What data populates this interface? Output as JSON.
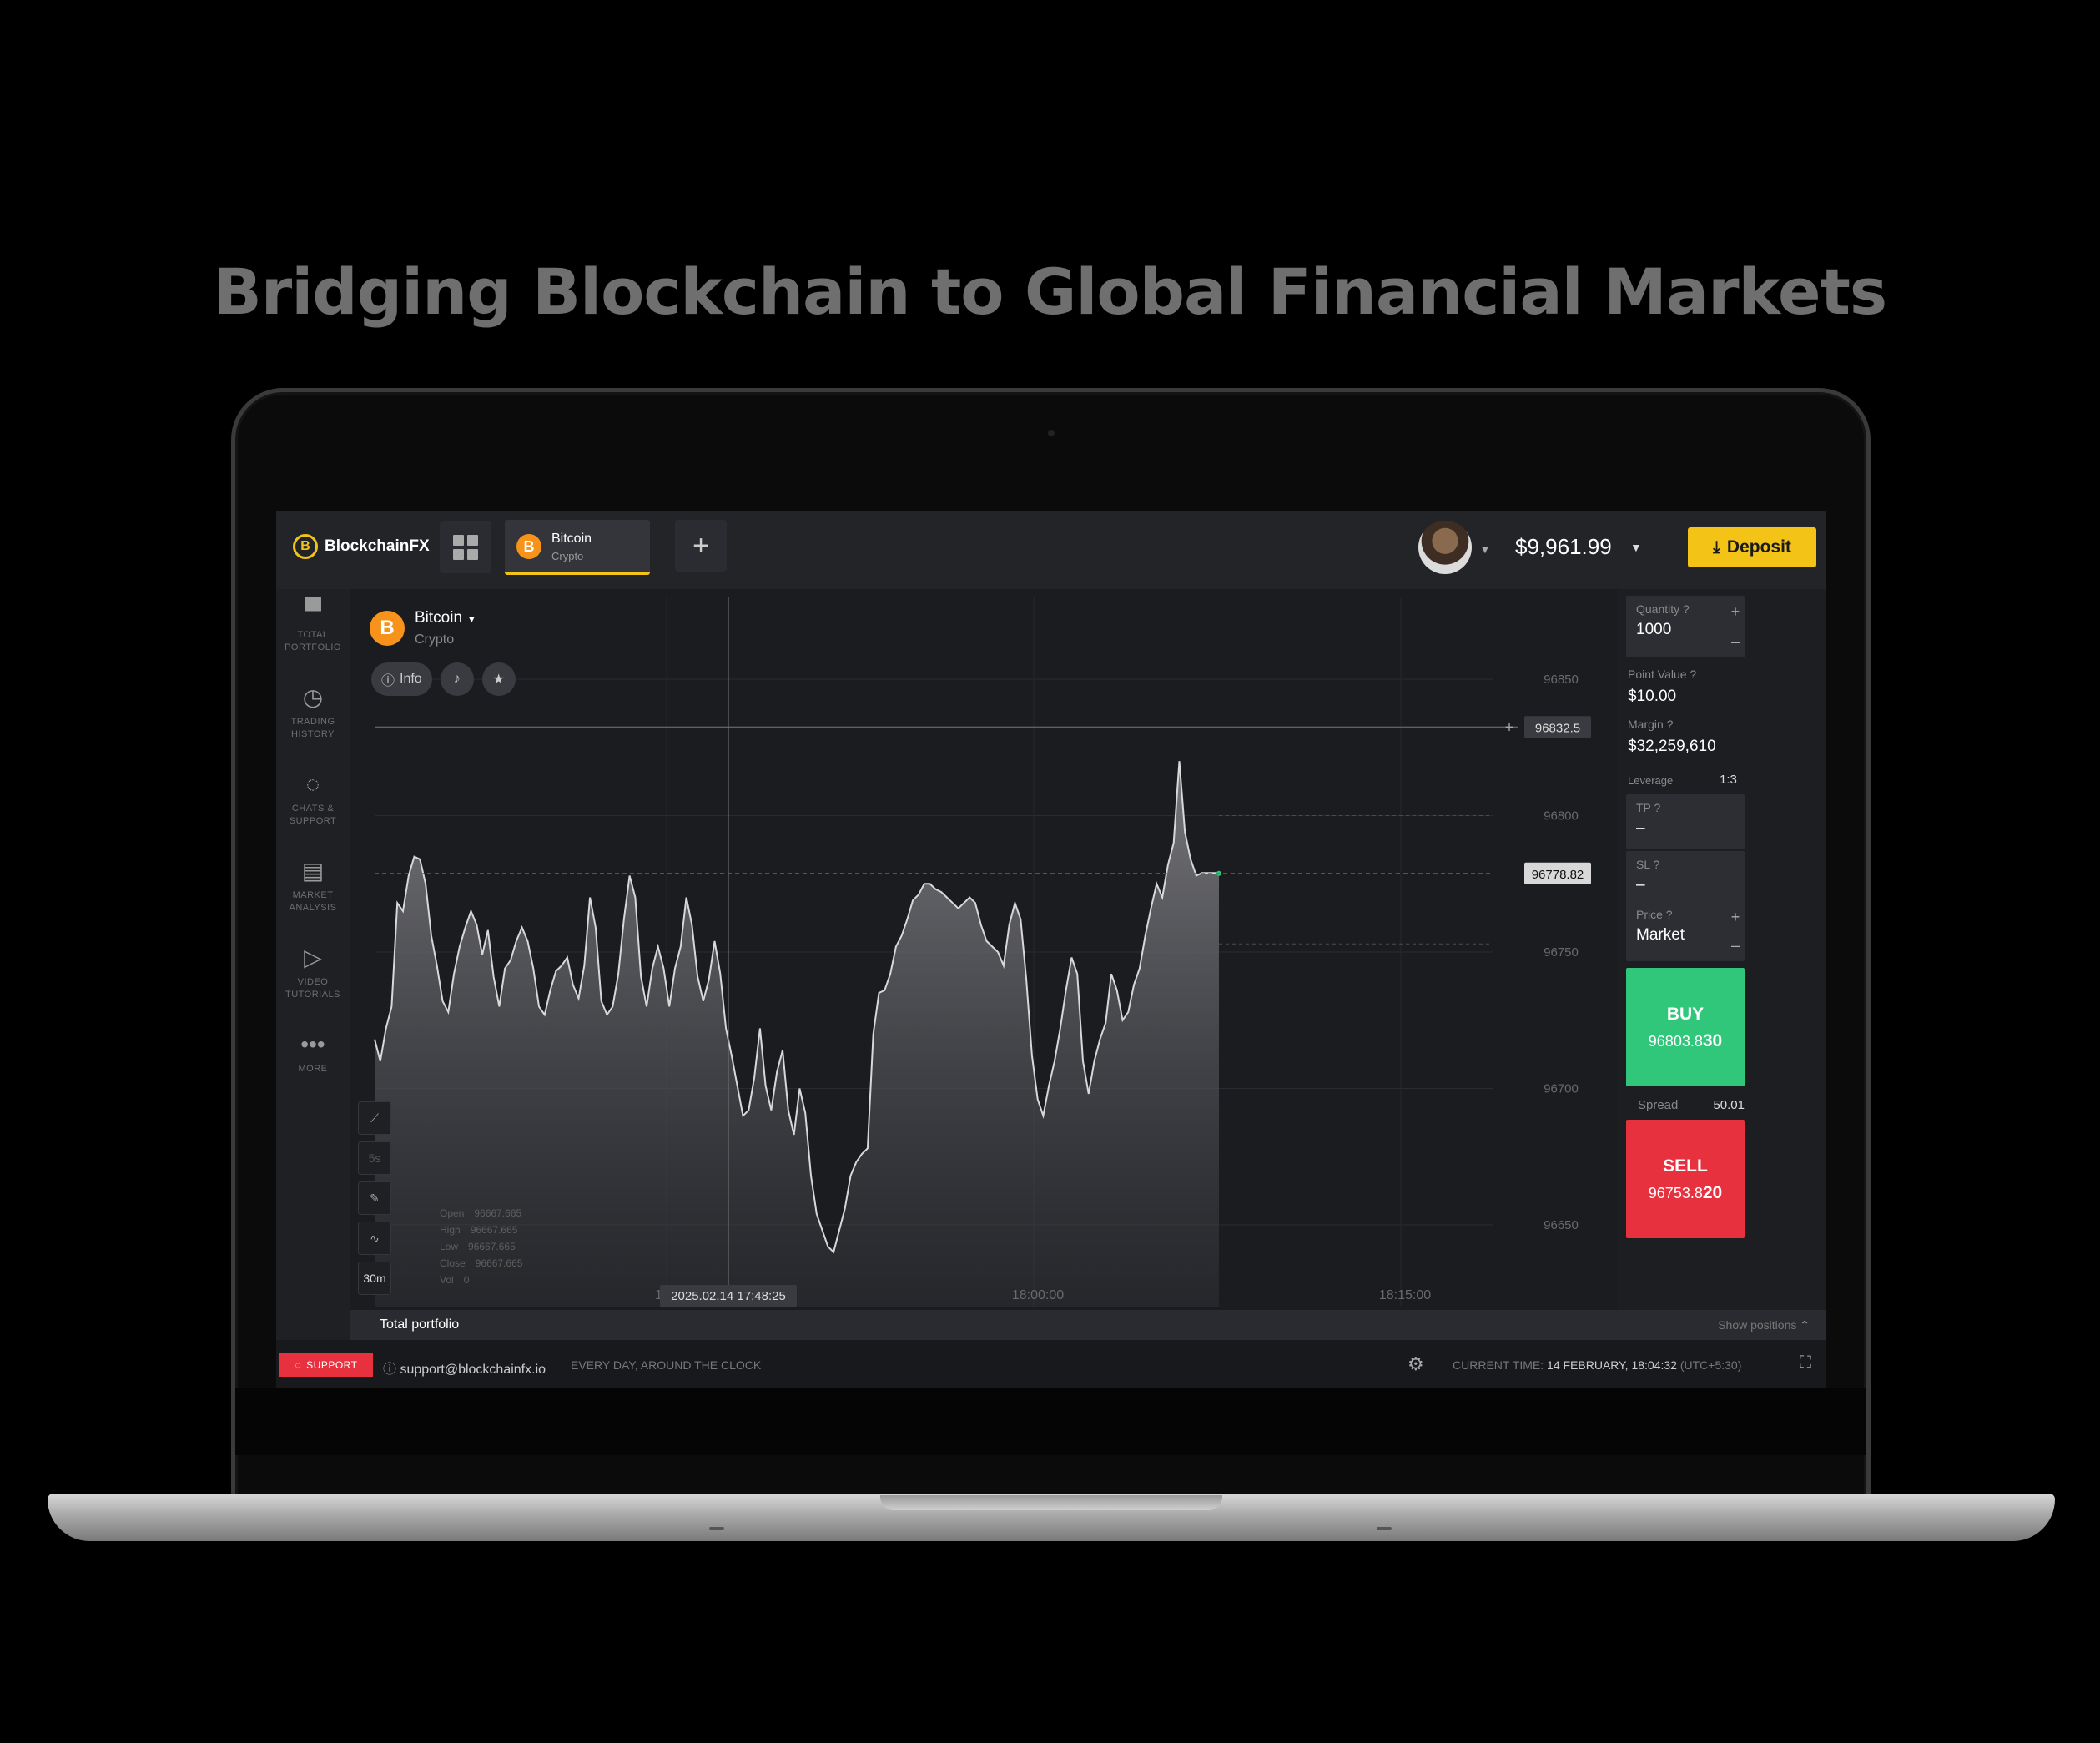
{
  "headline": "Bridging Blockchain to Global Financial Markets",
  "app": {
    "logo_text": "BlockchainFX",
    "logo_letter": "B",
    "tab": {
      "name": "Bitcoin",
      "category": "Crypto",
      "coin_letter": "B"
    },
    "add_tab": "+",
    "balance": "$9,961.99",
    "deposit_label": "Deposit"
  },
  "sidebar": [
    {
      "icon": "briefcase-icon",
      "label_1": "TOTAL",
      "label_2": "PORTFOLIO"
    },
    {
      "icon": "history-icon",
      "label_1": "TRADING",
      "label_2": "HISTORY"
    },
    {
      "icon": "chat-icon",
      "label_1": "CHATS &",
      "label_2": "SUPPORT"
    },
    {
      "icon": "analysis-icon",
      "label_1": "MARKET",
      "label_2": "ANALYSIS"
    },
    {
      "icon": "play-icon",
      "label_1": "VIDEO",
      "label_2": "TUTORIALS"
    },
    {
      "icon": "more-icon",
      "label_1": "MORE",
      "label_2": ""
    }
  ],
  "chart_header": {
    "name": "Bitcoin",
    "category": "Crypto",
    "info_label": "Info"
  },
  "tools": [
    "5s",
    "30m"
  ],
  "ohlc": {
    "open_label": "Open",
    "open": "96667.665",
    "high_label": "High",
    "high": "96667.665",
    "low_label": "Low",
    "low": "96667.665",
    "close_label": "Close",
    "close": "96667.665",
    "vol_label": "Vol",
    "vol": "0"
  },
  "chart_data": {
    "type": "area",
    "ylim": [
      96620,
      96880
    ],
    "y_ticks": [
      96650,
      96700,
      96750,
      96800,
      96850
    ],
    "y_tick_labels": [
      "96650",
      "96700",
      "96750",
      "96800",
      "96850"
    ],
    "x_tick_labels": [
      "17:45",
      "18:00:00",
      "18:15:00"
    ],
    "crosshair_time": "2025.02.14 17:48:25",
    "crosshair_price": "96832.5",
    "current_price": "96778.82",
    "current_price_value": 96778.82,
    "crosshair_price_value": 96832.5,
    "series": [
      {
        "values": [
          96718,
          96710,
          96722,
          96730,
          96768,
          96765,
          96778,
          96785,
          96784,
          96775,
          96756,
          96745,
          96732,
          96728,
          96742,
          96752,
          96759,
          96765,
          96760,
          96749,
          96758,
          96741,
          96730,
          96744,
          96747,
          96754,
          96759,
          96754,
          96744,
          96730,
          96727,
          96736,
          96743,
          96745,
          96748,
          96738,
          96733,
          96745,
          96770,
          96759,
          96732,
          96727,
          96730,
          96742,
          96762,
          96778,
          96770,
          96741,
          96730,
          96744,
          96752,
          96744,
          96730,
          96744,
          96752,
          96770,
          96760,
          96741,
          96732,
          96740,
          96754,
          96742,
          96722,
          96712,
          96701,
          96690,
          96692,
          96704,
          96722,
          96701,
          96692,
          96706,
          96714,
          96692,
          96683,
          96700,
          96691,
          96668,
          96654,
          96648,
          96642,
          96640,
          96648,
          96656,
          96668,
          96673,
          96676,
          96678,
          96720,
          96735,
          96736,
          96742,
          96752,
          96756,
          96762,
          96769,
          96771,
          96775,
          96775,
          96773,
          96772,
          96770,
          96768,
          96766,
          96768,
          96770,
          96768,
          96760,
          96754,
          96752,
          96750,
          96745,
          96760,
          96768,
          96762,
          96740,
          96712,
          96696,
          96690,
          96701,
          96710,
          96722,
          96736,
          96748,
          96742,
          96710,
          96698,
          96710,
          96718,
          96724,
          96742,
          96736,
          96725,
          96728,
          96738,
          96744,
          96756,
          96766,
          96775,
          96770,
          96782,
          96790,
          96820,
          96794,
          96784,
          96778,
          96779,
          96779,
          96779,
          96779
        ]
      }
    ]
  },
  "ticket": {
    "quantity_label": "Quantity",
    "quantity": "1000",
    "point_value_label": "Point Value",
    "point_value": "$10.00",
    "margin_label": "Margin",
    "margin": "$32,259,610",
    "leverage_label": "Leverage",
    "leverage": "1:3",
    "tp_label": "TP",
    "tp": "–",
    "sl_label": "SL",
    "sl": "–",
    "price_label": "Price",
    "price": "Market",
    "buy_label": "BUY",
    "buy_price": "96803.8",
    "buy_price_big": "30",
    "spread_label": "Spread",
    "spread": "50.01",
    "sell_label": "SELL",
    "sell_price": "96753.8",
    "sell_price_big": "20",
    "plus": "+",
    "minus": "–"
  },
  "portfolio": {
    "title": "Total portfolio",
    "show_positions": "Show positions"
  },
  "footer": {
    "support_label": "SUPPORT",
    "email": "support@blockchainfx.io",
    "availability": "EVERY DAY, AROUND THE CLOCK",
    "current_time_label": "CURRENT TIME:",
    "current_time": "14 FEBRUARY, 18:04:32",
    "timezone": "(UTC+5:30)"
  },
  "colors": {
    "accent": "#f3c317",
    "buy": "#31c77a",
    "sell": "#e8313f",
    "bitcoin": "#f7931a"
  }
}
